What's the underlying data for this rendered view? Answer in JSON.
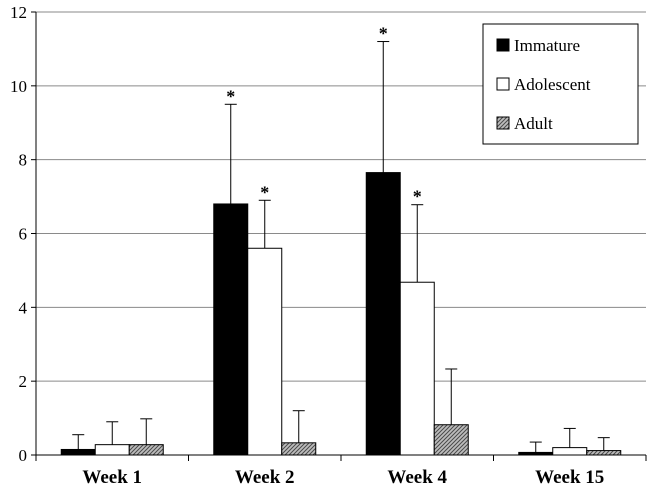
{
  "chart_data": {
    "type": "bar",
    "title": "",
    "xlabel": "",
    "ylabel": "",
    "ylim": [
      0,
      12
    ],
    "yticks": [
      0,
      2,
      4,
      6,
      8,
      10,
      12
    ],
    "grid": "horizontal",
    "legend_position": "top-right",
    "categories": [
      "Week 1",
      "Week 2",
      "Week 4",
      "Week 15"
    ],
    "series": [
      {
        "name": "Immature",
        "fill": "#000000",
        "values": [
          0.15,
          6.8,
          7.65,
          0.07
        ],
        "error_upper": [
          0.55,
          9.5,
          11.2,
          0.35
        ],
        "significant": [
          false,
          true,
          true,
          false
        ]
      },
      {
        "name": "Adolescent",
        "fill": "#ffffff",
        "values": [
          0.28,
          5.6,
          4.68,
          0.2
        ],
        "error_upper": [
          0.9,
          6.9,
          6.78,
          0.72
        ],
        "significant": [
          false,
          true,
          true,
          false
        ]
      },
      {
        "name": "Adult",
        "fill": "hatch",
        "values": [
          0.28,
          0.33,
          0.82,
          0.12
        ],
        "error_upper": [
          0.98,
          1.2,
          2.33,
          0.47
        ],
        "significant": [
          false,
          false,
          false,
          false
        ]
      }
    ],
    "significance_marker": "*"
  }
}
